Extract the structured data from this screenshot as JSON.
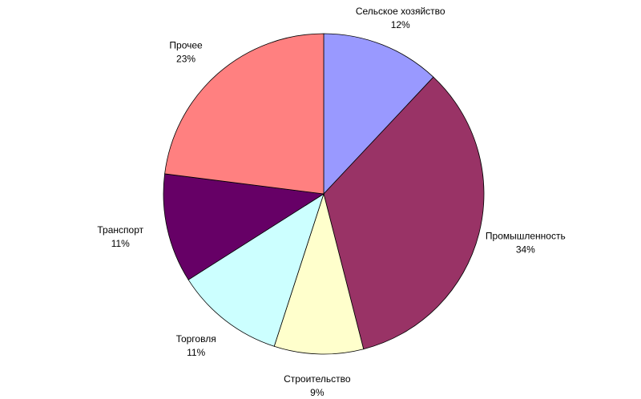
{
  "chart_data": {
    "type": "pie",
    "categories": [
      "Сельское хозяйство",
      "Промышленность",
      "Строительство",
      "Торговля",
      "Транспорт",
      "Прочее"
    ],
    "values": [
      12,
      34,
      9,
      11,
      11,
      23
    ],
    "value_labels": [
      "12%",
      "34%",
      "9%",
      "11%",
      "11%",
      "23%"
    ],
    "colors": [
      "#9999ff",
      "#993366",
      "#ffffcc",
      "#ccffff",
      "#660066",
      "#ff8080"
    ]
  }
}
